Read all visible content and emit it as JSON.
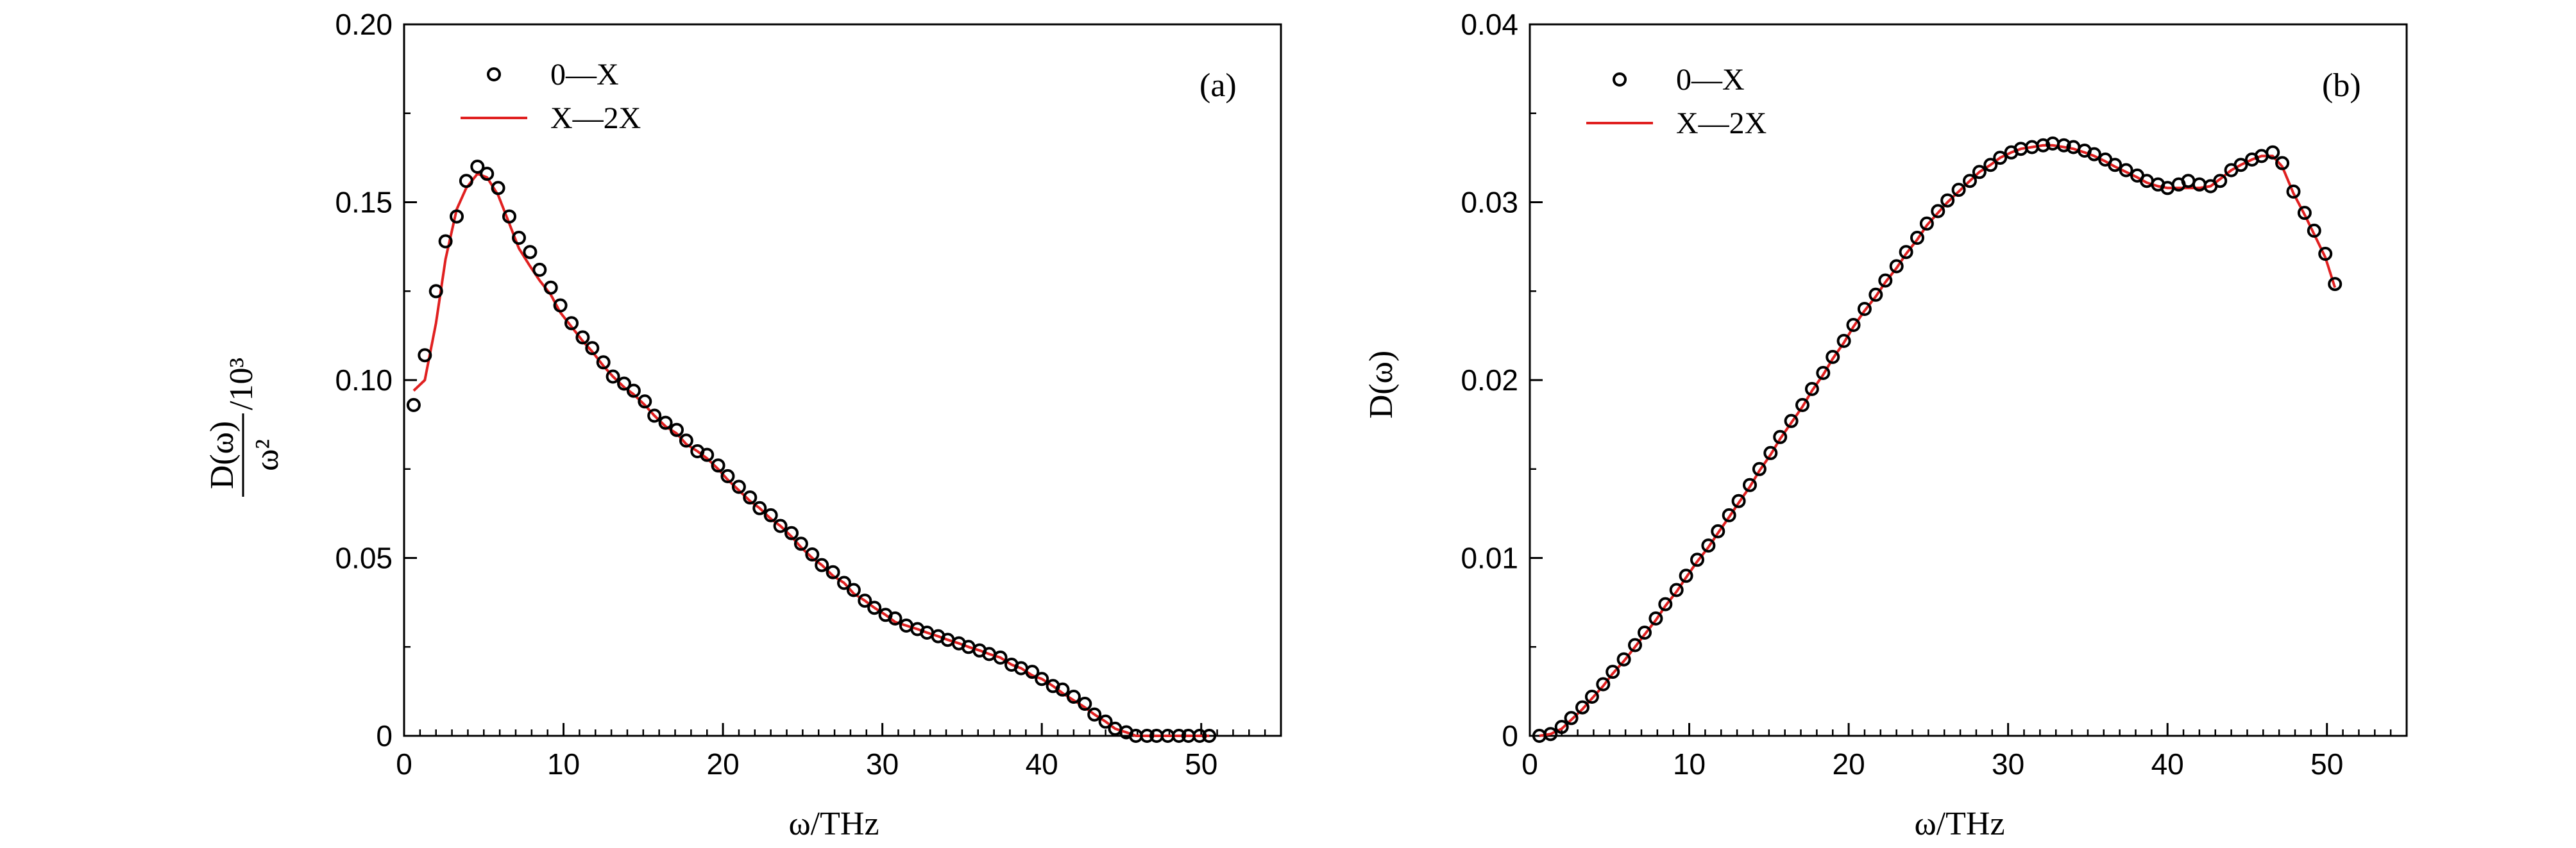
{
  "chart_data": [
    {
      "type": "scatter+line",
      "panel_label": "(a)",
      "xlabel": "ω/THz",
      "ylabel_numerator": "D(ω)",
      "ylabel_denominator": "ω²",
      "ylabel_suffix": "/10³",
      "xlim": [
        0,
        55
      ],
      "ylim": [
        0,
        0.2
      ],
      "xticks": [
        0,
        10,
        20,
        30,
        40,
        50
      ],
      "xtick_labels": [
        "0",
        "10",
        "20",
        "30",
        "40",
        "50"
      ],
      "yticks": [
        0,
        0.05,
        0.1,
        0.15,
        0.2
      ],
      "ytick_labels": [
        "0",
        "0.05",
        "0.10",
        "0.15",
        "0.20"
      ],
      "legend_position": "top-left",
      "series": [
        {
          "name": "0—X",
          "style": "circles",
          "color": "#000000",
          "x": [
            0.6,
            1.3,
            2.0,
            2.6,
            3.3,
            3.9,
            4.6,
            5.2,
            5.9,
            6.6,
            7.2,
            7.9,
            8.5,
            9.2,
            9.8,
            10.5,
            11.2,
            11.8,
            12.5,
            13.1,
            13.8,
            14.4,
            15.1,
            15.7,
            16.4,
            17.1,
            17.7,
            18.4,
            19.0,
            19.7,
            20.3,
            21.0,
            21.7,
            22.3,
            23.0,
            23.6,
            24.3,
            24.9,
            25.6,
            26.2,
            26.9,
            27.6,
            28.2,
            28.9,
            29.5,
            30.2,
            30.8,
            31.5,
            32.2,
            32.8,
            33.5,
            34.1,
            34.8,
            35.4,
            36.1,
            36.7,
            37.4,
            38.1,
            38.7,
            39.4,
            40.0,
            40.7,
            41.3,
            42.0,
            42.7,
            43.3,
            44.0,
            44.6,
            45.3,
            45.9,
            46.6,
            47.2,
            47.9,
            48.6,
            49.2,
            49.9,
            50.5
          ],
          "y": [
            0.093,
            0.107,
            0.125,
            0.139,
            0.146,
            0.156,
            0.16,
            0.158,
            0.154,
            0.146,
            0.14,
            0.136,
            0.131,
            0.126,
            0.121,
            0.116,
            0.112,
            0.109,
            0.105,
            0.101,
            0.099,
            0.097,
            0.094,
            0.09,
            0.088,
            0.086,
            0.083,
            0.08,
            0.079,
            0.076,
            0.073,
            0.07,
            0.067,
            0.064,
            0.062,
            0.059,
            0.057,
            0.054,
            0.051,
            0.048,
            0.046,
            0.043,
            0.041,
            0.038,
            0.036,
            0.034,
            0.033,
            0.031,
            0.03,
            0.029,
            0.028,
            0.027,
            0.026,
            0.025,
            0.024,
            0.023,
            0.022,
            0.02,
            0.019,
            0.018,
            0.016,
            0.014,
            0.013,
            0.011,
            0.009,
            0.006,
            0.004,
            0.002,
            0.001,
            0.0,
            0.0,
            0.0,
            0.0,
            0.0,
            0.0,
            0.0,
            0.0
          ]
        },
        {
          "name": "X—2X",
          "style": "line",
          "color": "#e02020",
          "x": [
            0.6,
            1.3,
            2.0,
            2.6,
            3.3,
            3.9,
            4.6,
            5.2,
            5.9,
            6.6,
            7.2,
            7.9,
            8.5,
            9.2,
            9.8,
            10.5,
            11.2,
            11.8,
            12.5,
            13.1,
            13.8,
            14.4,
            15.1,
            15.7,
            16.4,
            17.1,
            17.7,
            18.4,
            19.0,
            19.7,
            20.3,
            21.0,
            21.7,
            22.3,
            23.0,
            23.6,
            24.3,
            24.9,
            25.6,
            26.2,
            26.9,
            27.6,
            28.2,
            28.9,
            29.5,
            30.2,
            30.8,
            31.5,
            32.2,
            32.8,
            33.5,
            34.1,
            34.8,
            35.4,
            36.1,
            36.7,
            37.4,
            38.1,
            38.7,
            39.4,
            40.0,
            40.7,
            41.3,
            42.0,
            42.7,
            43.3,
            44.0,
            44.6,
            45.3,
            45.9,
            46.6,
            47.2,
            47.9,
            48.6,
            49.2,
            49.9,
            50.5
          ],
          "y": [
            0.097,
            0.1,
            0.116,
            0.134,
            0.148,
            0.154,
            0.158,
            0.157,
            0.152,
            0.144,
            0.137,
            0.132,
            0.128,
            0.124,
            0.119,
            0.115,
            0.111,
            0.108,
            0.104,
            0.101,
            0.098,
            0.096,
            0.093,
            0.09,
            0.087,
            0.085,
            0.082,
            0.08,
            0.078,
            0.075,
            0.072,
            0.069,
            0.066,
            0.064,
            0.061,
            0.059,
            0.056,
            0.053,
            0.05,
            0.048,
            0.045,
            0.043,
            0.04,
            0.038,
            0.036,
            0.034,
            0.032,
            0.031,
            0.03,
            0.029,
            0.028,
            0.027,
            0.026,
            0.025,
            0.024,
            0.023,
            0.022,
            0.02,
            0.019,
            0.017,
            0.016,
            0.014,
            0.012,
            0.01,
            0.008,
            0.006,
            0.004,
            0.002,
            0.001,
            0.0,
            0.0,
            0.0,
            0.0,
            0.0,
            0.0,
            0.0,
            0.0
          ]
        }
      ]
    },
    {
      "type": "scatter+line",
      "panel_label": "(b)",
      "xlabel": "ω/THz",
      "ylabel": "D(ω)",
      "xlim": [
        0,
        55
      ],
      "ylim": [
        0,
        0.04
      ],
      "xticks": [
        0,
        10,
        20,
        30,
        40,
        50
      ],
      "xtick_labels": [
        "0",
        "10",
        "20",
        "30",
        "40",
        "50"
      ],
      "yticks": [
        0,
        0.01,
        0.02,
        0.03,
        0.04
      ],
      "ytick_labels": [
        "0",
        "0.01",
        "0.02",
        "0.03",
        "0.04"
      ],
      "legend_position": "top-left",
      "series": [
        {
          "name": "0—X",
          "style": "circles",
          "color": "#000000",
          "x": [
            0.6,
            1.3,
            2.0,
            2.6,
            3.3,
            3.9,
            4.6,
            5.2,
            5.9,
            6.6,
            7.2,
            7.9,
            8.5,
            9.2,
            9.8,
            10.5,
            11.2,
            11.8,
            12.5,
            13.1,
            13.8,
            14.4,
            15.1,
            15.7,
            16.4,
            17.1,
            17.7,
            18.4,
            19.0,
            19.7,
            20.3,
            21.0,
            21.7,
            22.3,
            23.0,
            23.6,
            24.3,
            24.9,
            25.6,
            26.2,
            26.9,
            27.6,
            28.2,
            28.9,
            29.5,
            30.2,
            30.8,
            31.5,
            32.2,
            32.8,
            33.5,
            34.1,
            34.8,
            35.4,
            36.1,
            36.7,
            37.4,
            38.1,
            38.7,
            39.4,
            40.0,
            40.7,
            41.3,
            42.0,
            42.7,
            43.3,
            44.0,
            44.6,
            45.3,
            45.9,
            46.6,
            47.2,
            47.9,
            48.6,
            49.2,
            49.9,
            50.5
          ],
          "y": [
            0.0,
            0.0001,
            0.0005,
            0.001,
            0.0016,
            0.0022,
            0.0029,
            0.0036,
            0.0043,
            0.0051,
            0.0058,
            0.0066,
            0.0074,
            0.0082,
            0.009,
            0.0099,
            0.0107,
            0.0115,
            0.0124,
            0.0132,
            0.0141,
            0.015,
            0.0159,
            0.0168,
            0.0177,
            0.0186,
            0.0195,
            0.0204,
            0.0213,
            0.0222,
            0.0231,
            0.024,
            0.0248,
            0.0256,
            0.0264,
            0.0272,
            0.028,
            0.0288,
            0.0295,
            0.0301,
            0.0307,
            0.0312,
            0.0317,
            0.0321,
            0.0325,
            0.0328,
            0.033,
            0.0331,
            0.0332,
            0.0333,
            0.0332,
            0.0331,
            0.0329,
            0.0327,
            0.0324,
            0.0321,
            0.0318,
            0.0315,
            0.0312,
            0.031,
            0.0308,
            0.031,
            0.0312,
            0.031,
            0.0309,
            0.0312,
            0.0318,
            0.0321,
            0.0324,
            0.0326,
            0.0328,
            0.0322,
            0.0306,
            0.0294,
            0.0284,
            0.0271,
            0.0254
          ],
          "note_x_offset_handled": true
        },
        {
          "name": "X—2X",
          "style": "line",
          "color": "#e02020",
          "x": [
            0.6,
            1.3,
            2.0,
            2.6,
            3.3,
            3.9,
            4.6,
            5.2,
            5.9,
            6.6,
            7.2,
            7.9,
            8.5,
            9.2,
            9.8,
            10.5,
            11.2,
            11.8,
            12.5,
            13.1,
            13.8,
            14.4,
            15.1,
            15.7,
            16.4,
            17.1,
            17.7,
            18.4,
            19.0,
            19.7,
            20.3,
            21.0,
            21.7,
            22.3,
            23.0,
            23.6,
            24.3,
            24.9,
            25.6,
            26.2,
            26.9,
            27.6,
            28.2,
            28.9,
            29.5,
            30.2,
            30.8,
            31.5,
            32.2,
            32.8,
            33.5,
            34.1,
            34.8,
            35.4,
            36.1,
            36.7,
            37.4,
            38.1,
            38.7,
            39.4,
            40.0,
            40.7,
            41.3,
            42.0,
            42.7,
            43.3,
            44.0,
            44.6,
            45.3,
            45.9,
            46.6,
            47.2,
            47.9,
            48.6,
            49.2,
            49.9,
            50.5
          ],
          "y": [
            0.0,
            0.0001,
            0.0004,
            0.0009,
            0.0015,
            0.0021,
            0.0028,
            0.0035,
            0.0042,
            0.005,
            0.0057,
            0.0065,
            0.0073,
            0.0081,
            0.0089,
            0.0098,
            0.0106,
            0.0114,
            0.0123,
            0.0131,
            0.014,
            0.0149,
            0.0158,
            0.0167,
            0.0176,
            0.0185,
            0.0194,
            0.0203,
            0.0212,
            0.0221,
            0.023,
            0.0239,
            0.0247,
            0.0255,
            0.0263,
            0.0271,
            0.0279,
            0.0287,
            0.0294,
            0.03,
            0.0306,
            0.0312,
            0.0317,
            0.0321,
            0.0325,
            0.0328,
            0.033,
            0.0331,
            0.0332,
            0.0332,
            0.0331,
            0.033,
            0.0328,
            0.0326,
            0.0323,
            0.032,
            0.0317,
            0.0314,
            0.0311,
            0.0309,
            0.0308,
            0.0308,
            0.0308,
            0.0308,
            0.0309,
            0.0313,
            0.0318,
            0.0321,
            0.0324,
            0.0326,
            0.0326,
            0.032,
            0.0305,
            0.0293,
            0.0282,
            0.0269,
            0.0252
          ]
        }
      ]
    }
  ]
}
